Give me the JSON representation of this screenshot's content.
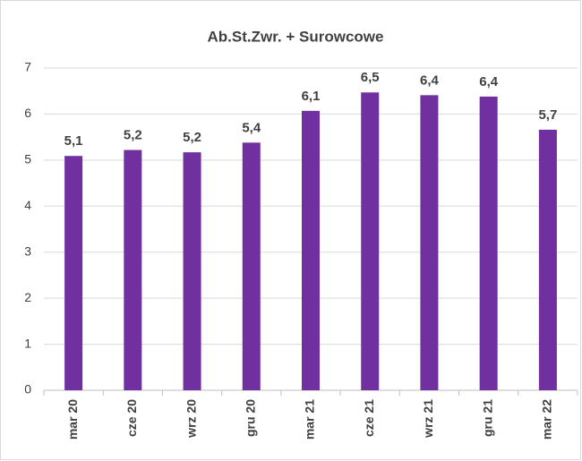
{
  "chart_data": {
    "type": "bar",
    "title": "Ab.St.Zwr. + Surowcowe",
    "categories": [
      "mar 20",
      "cze 20",
      "wrz 20",
      "gru 20",
      "mar 21",
      "cze 21",
      "wrz 21",
      "gru 21",
      "mar 22"
    ],
    "values": [
      5.09,
      5.22,
      5.17,
      5.38,
      6.07,
      6.47,
      6.41,
      6.38,
      5.66
    ],
    "value_labels": [
      "5,1",
      "5,2",
      "5,2",
      "5,4",
      "6,1",
      "6,5",
      "6,4",
      "6,4",
      "5,7"
    ],
    "color": "#7030a0",
    "ylim": [
      0,
      7
    ],
    "yticks": [
      0,
      1,
      2,
      3,
      4,
      5,
      6,
      7
    ],
    "grid": true
  }
}
